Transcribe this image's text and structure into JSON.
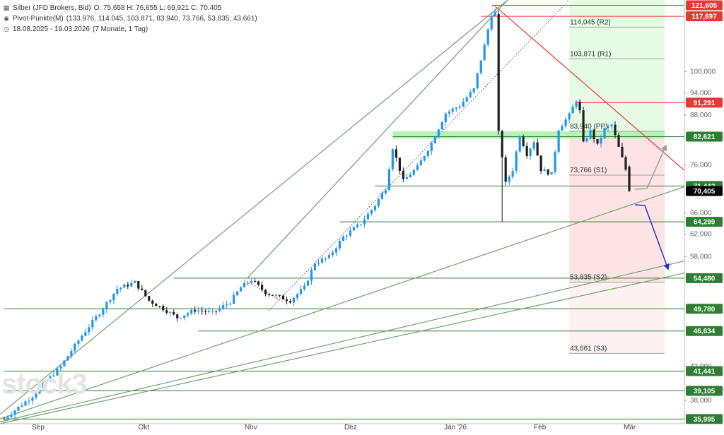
{
  "legend": {
    "instrument": "Silber (JFD Brokers, Bid)",
    "ohlc": "O: 75,658  H: 76,655  L: 69,921  C: 70,405",
    "pivot_label": "Pivot-Punkte(M)",
    "pivot_values": "(133.976, 114.045, 103.871, 83.940, 73.766, 53.835, 43.661)",
    "range": "18.08.2025 - 19.03.2026",
    "range_detail": "(7 Monate, 1 Tag)"
  },
  "watermark": "stock3",
  "colors": {
    "up": "#2196f3",
    "down": "#1f1f1f",
    "trend_green": "#6f9f6f",
    "support_green": "#2e7d32",
    "resistance_red": "#e53935",
    "pivot_up_zone": "#e6fbe6",
    "pivot_down_zone": "#fde3e3",
    "pp_band": "#b9f2b9",
    "last_price": "#000000",
    "projection_down": "#2531d6",
    "projection_up": "#9e9e9e"
  },
  "chart_data": {
    "type": "candlestick",
    "x_axis": {
      "ticks": [
        "Sep",
        "Okt",
        "Nov",
        "Dez",
        "Jan '26",
        "Feb",
        "Mär"
      ]
    },
    "y_axis": {
      "scale": "log",
      "range": [
        35.5,
        123.5
      ],
      "ticks": [
        "100,000",
        "94,000",
        "88,000",
        "76,000",
        "66,000",
        "62,000",
        "58,000",
        "42,000",
        "38,000"
      ]
    },
    "price_levels": [
      {
        "label": "121,605",
        "value": 121.605,
        "role": "resistance"
      },
      {
        "label": "117,697",
        "value": 117.697,
        "role": "resistance"
      },
      {
        "label": "91,291",
        "value": 91.291,
        "role": "resistance"
      },
      {
        "label": "82,621",
        "value": 82.621,
        "role": "support"
      },
      {
        "label": "71,442",
        "value": 71.442,
        "role": "support"
      },
      {
        "label": "70,405",
        "value": 70.405,
        "role": "last"
      },
      {
        "label": "64,299",
        "value": 64.299,
        "role": "support"
      },
      {
        "label": "54,480",
        "value": 54.48,
        "role": "support"
      },
      {
        "label": "49,780",
        "value": 49.78,
        "role": "support"
      },
      {
        "label": "46,634",
        "value": 46.634,
        "role": "support"
      },
      {
        "label": "41,441",
        "value": 41.441,
        "role": "support"
      },
      {
        "label": "39,105",
        "value": 39.105,
        "role": "support"
      },
      {
        "label": "35,995",
        "value": 35.995,
        "role": "support"
      }
    ],
    "pivots": [
      {
        "label": "114,045 (R2)",
        "value": 114.045
      },
      {
        "label": "103,871 (R1)",
        "value": 103.871
      },
      {
        "label": "83,940 (PP)",
        "value": 83.94
      },
      {
        "label": "73,766 (S1)",
        "value": 73.766
      },
      {
        "label": "53,835 (S2)",
        "value": 53.835
      },
      {
        "label": "43,661 (S3)",
        "value": 43.661
      }
    ],
    "key_points": [
      [
        0,
        36.0
      ],
      [
        8,
        38.5
      ],
      [
        16,
        42.0
      ],
      [
        22,
        46.0
      ],
      [
        27,
        49.2
      ],
      [
        32,
        52.8
      ],
      [
        37,
        53.8
      ],
      [
        41,
        51.0
      ],
      [
        46,
        49.5
      ],
      [
        49,
        48.5
      ],
      [
        54,
        49.6
      ],
      [
        59,
        49.2
      ],
      [
        64,
        50.8
      ],
      [
        67,
        53.0
      ],
      [
        70,
        54.2
      ],
      [
        74,
        52.2
      ],
      [
        78,
        51.5
      ],
      [
        81,
        51.0
      ],
      [
        85,
        53.0
      ],
      [
        88,
        57.0
      ],
      [
        92,
        58.0
      ],
      [
        96,
        61.5
      ],
      [
        101,
        64.0
      ],
      [
        105,
        67.5
      ],
      [
        108,
        71.0
      ],
      [
        110,
        80.0
      ],
      [
        113,
        72.5
      ],
      [
        117,
        75.5
      ],
      [
        121,
        81.0
      ],
      [
        125,
        88.5
      ],
      [
        129,
        90.5
      ],
      [
        133,
        95.0
      ],
      [
        136,
        108.0
      ],
      [
        138,
        118.5
      ],
      [
        139,
        119.0
      ],
      [
        140,
        84.0
      ],
      [
        142,
        72.0
      ],
      [
        144,
        75.0
      ],
      [
        146,
        83.0
      ],
      [
        148,
        78.5
      ],
      [
        150,
        81.5
      ],
      [
        152,
        75.0
      ],
      [
        155,
        74.0
      ],
      [
        157,
        84.5
      ],
      [
        160,
        88.0
      ],
      [
        162,
        92.0
      ],
      [
        163,
        89.0
      ],
      [
        164,
        81.0
      ],
      [
        166,
        84.0
      ],
      [
        168,
        80.5
      ],
      [
        170,
        84.5
      ],
      [
        172,
        85.5
      ],
      [
        174,
        80.0
      ],
      [
        176,
        75.0
      ],
      [
        177,
        70.4
      ]
    ]
  }
}
